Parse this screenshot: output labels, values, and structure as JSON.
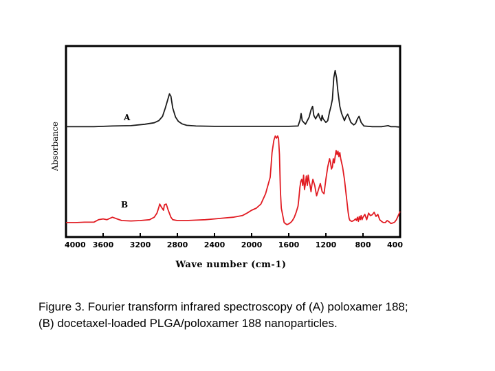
{
  "chart_data": {
    "type": "line",
    "title": "",
    "xlabel": "Wave number",
    "xlabel_unit": "(cm-1)",
    "ylabel": "Absorbance",
    "xlim": [
      4000,
      400
    ],
    "x_reversed": true,
    "x_ticks": [
      4000,
      3600,
      3200,
      2800,
      2400,
      2000,
      1600,
      1200,
      800,
      400
    ],
    "y_ticks_shown": false,
    "grid": false,
    "legend": "none",
    "series": [
      {
        "name": "A",
        "color": "#1a1a1a",
        "x": [
          4000,
          3700,
          3500,
          3300,
          3150,
          3050,
          3000,
          2960,
          2930,
          2900,
          2885,
          2870,
          2850,
          2820,
          2790,
          2750,
          2700,
          2600,
          2400,
          2200,
          2000,
          1900,
          1800,
          1700,
          1600,
          1500,
          1480,
          1467,
          1455,
          1420,
          1380,
          1360,
          1343,
          1330,
          1310,
          1280,
          1270,
          1250,
          1240,
          1230,
          1200,
          1180,
          1160,
          1145,
          1130,
          1115,
          1100,
          1085,
          1070,
          1050,
          1030,
          1000,
          985,
          965,
          950,
          930,
          900,
          880,
          860,
          842,
          820,
          790,
          700,
          600,
          530,
          500,
          450,
          400
        ],
        "values": [
          3,
          3,
          5,
          6,
          10,
          14,
          20,
          32,
          55,
          82,
          95,
          88,
          55,
          30,
          18,
          11,
          7,
          5,
          4,
          4,
          4,
          4,
          4,
          4,
          4,
          5,
          20,
          40,
          20,
          10,
          30,
          50,
          60,
          35,
          25,
          40,
          30,
          20,
          35,
          25,
          15,
          20,
          45,
          60,
          80,
          140,
          160,
          140,
          100,
          60,
          40,
          20,
          30,
          38,
          28,
          15,
          8,
          12,
          25,
          32,
          15,
          5,
          3,
          3,
          6,
          3,
          3,
          2
        ]
      },
      {
        "name": "B",
        "color": "#e11b22",
        "x": [
          4000,
          3900,
          3800,
          3700,
          3650,
          3600,
          3560,
          3500,
          3450,
          3400,
          3300,
          3200,
          3100,
          3050,
          3020,
          3000,
          2990,
          2970,
          2950,
          2940,
          2920,
          2900,
          2870,
          2850,
          2800,
          2700,
          2600,
          2500,
          2400,
          2300,
          2200,
          2100,
          2050,
          2000,
          1950,
          1900,
          1850,
          1800,
          1790,
          1780,
          1760,
          1745,
          1730,
          1720,
          1710,
          1700,
          1690,
          1680,
          1650,
          1620,
          1600,
          1580,
          1560,
          1540,
          1520,
          1500,
          1490,
          1480,
          1470,
          1460,
          1450,
          1440,
          1430,
          1420,
          1410,
          1400,
          1390,
          1380,
          1370,
          1360,
          1350,
          1340,
          1320,
          1300,
          1280,
          1260,
          1240,
          1220,
          1200,
          1180,
          1160,
          1150,
          1140,
          1130,
          1120,
          1110,
          1100,
          1090,
          1080,
          1070,
          1060,
          1050,
          1040,
          1020,
          1000,
          980,
          960,
          950,
          940,
          920,
          900,
          880,
          870,
          860,
          850,
          840,
          830,
          820,
          810,
          800,
          780,
          760,
          740,
          720,
          700,
          680,
          660,
          640,
          620,
          600,
          580,
          560,
          540,
          520,
          500,
          480,
          460,
          440,
          420,
          400
        ],
        "values": [
          5,
          5,
          6,
          6,
          12,
          14,
          12,
          18,
          14,
          10,
          9,
          10,
          12,
          18,
          28,
          42,
          50,
          42,
          35,
          48,
          50,
          36,
          18,
          12,
          10,
          10,
          11,
          12,
          14,
          16,
          18,
          22,
          28,
          35,
          40,
          50,
          75,
          115,
          145,
          175,
          205,
          215,
          210,
          215,
          210,
          170,
          80,
          40,
          5,
          0,
          2,
          5,
          10,
          18,
          30,
          45,
          65,
          90,
          105,
          110,
          95,
          120,
          85,
          100,
          118,
          95,
          120,
          105,
          95,
          80,
          98,
          110,
          95,
          70,
          85,
          100,
          80,
          75,
          110,
          140,
          160,
          150,
          135,
          140,
          160,
          150,
          165,
          180,
          170,
          178,
          165,
          175,
          160,
          140,
          110,
          70,
          30,
          15,
          10,
          8,
          10,
          14,
          10,
          18,
          8,
          20,
          12,
          22,
          12,
          18,
          25,
          12,
          28,
          22,
          24,
          30,
          20,
          25,
          12,
          8,
          5,
          5,
          10,
          7,
          3,
          4,
          6,
          12,
          22,
          32
        ]
      }
    ]
  },
  "caption": {
    "line1": "Figure 3. Fourier transform infrared spectroscopy of (A) poloxamer 188;",
    "line2": "(B) docetaxel-loaded PLGA/poloxamer 188 nanoparticles."
  }
}
